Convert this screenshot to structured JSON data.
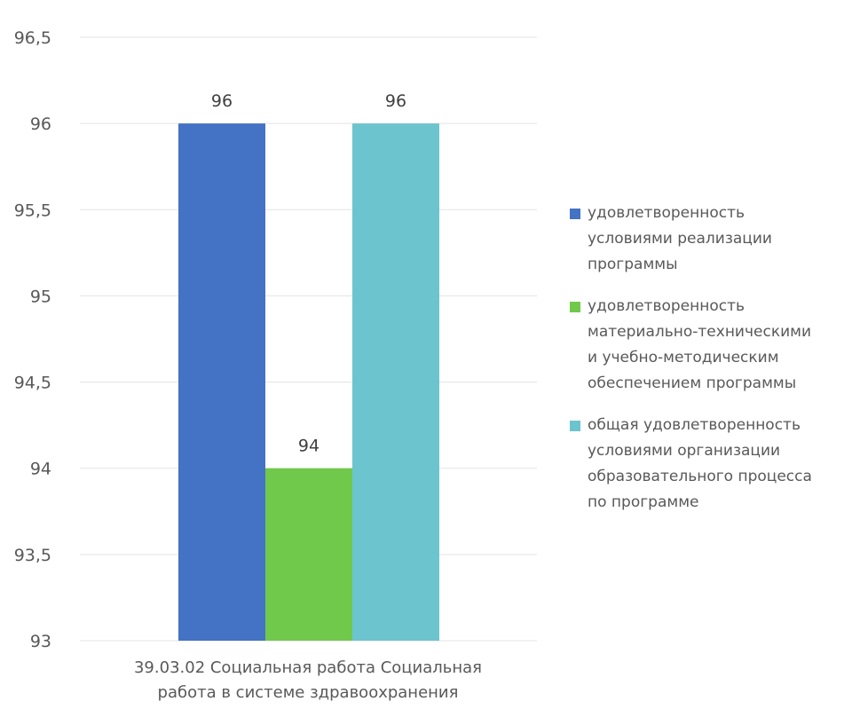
{
  "chart_data": {
    "type": "bar",
    "categories": [
      "39.03.02 Социальная работа   Социальная работа в системе здравоохранения"
    ],
    "category_lines": [
      "39.03.02 Социальная работа   Социальная",
      "работа в системе здравоохранения"
    ],
    "series": [
      {
        "name": "удовлетворенность условиями реализации программы",
        "values": [
          96
        ],
        "color": "#4472C4"
      },
      {
        "name": "удовлетворенность материально-технически­ми и учебно-методическим обеспечением программы",
        "values": [
          94
        ],
        "color": "#70C94B"
      },
      {
        "name": "общая удовлетворенность условиями организации образовательного процесса по программе",
        "values": [
          96
        ],
        "color": "#6CC4CF"
      }
    ],
    "legend_lines": [
      [
        "удовлетворенность",
        "условиями реализации",
        "программы"
      ],
      [
        "удовлетворенность",
        "материально-техническими",
        "и учебно-методическим",
        "обеспечением программы"
      ],
      [
        "общая удовлетворенность",
        "условиями организации",
        "образовательного процесса",
        "по программе"
      ]
    ],
    "data_labels": [
      "96",
      "94",
      "96"
    ],
    "yticks": [
      "96,5",
      "96",
      "95,5",
      "95",
      "94,5",
      "94",
      "93,5",
      "93"
    ],
    "ylim": [
      93,
      96.5
    ],
    "grid": true,
    "legend_position": "right",
    "title": "",
    "xlabel": "",
    "ylabel": ""
  }
}
